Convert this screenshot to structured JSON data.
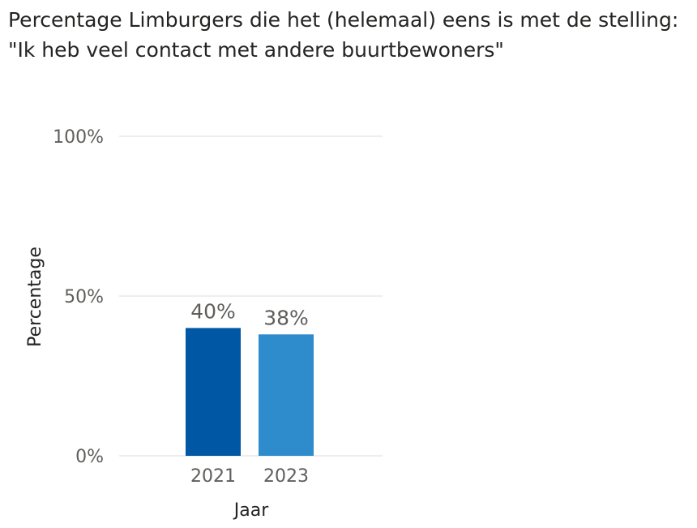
{
  "chart_data": {
    "type": "bar",
    "title_line1": "Percentage Limburgers die het (helemaal) eens is met de stelling:",
    "title_line2": "\"Ik heb veel contact met andere buurtbewoners\"",
    "xlabel": "Jaar",
    "ylabel": "Percentage",
    "categories": [
      "2021",
      "2023"
    ],
    "values": [
      40,
      38
    ],
    "data_labels": [
      "40%",
      "38%"
    ],
    "bar_colors": [
      "#0057a4",
      "#2e8ccc"
    ],
    "ylim": [
      0,
      100
    ],
    "yticks": [
      0,
      50,
      100
    ],
    "ytick_labels": [
      "0%",
      "50%",
      "100%"
    ],
    "grid": true,
    "legend": "none"
  }
}
